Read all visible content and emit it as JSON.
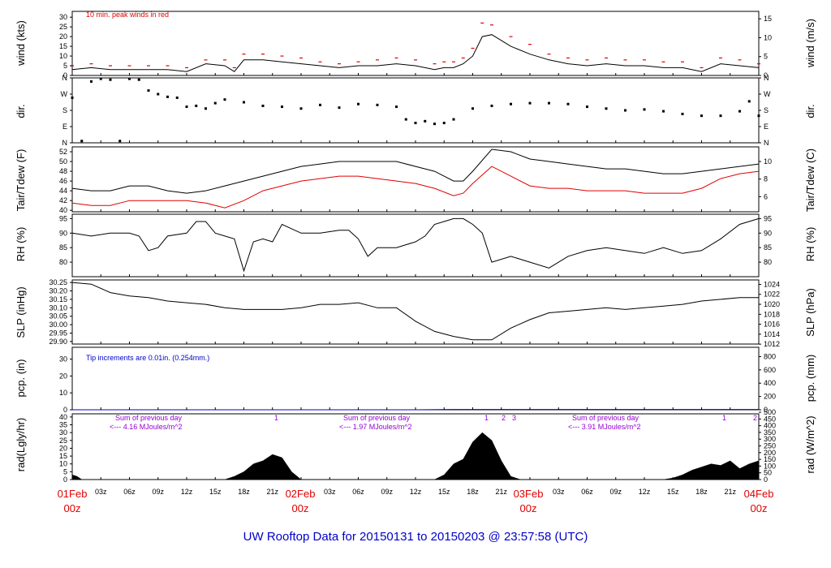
{
  "title": "UW Rooftop Data for 20150131  to  20150203 @ 23:57:58  (UTC)",
  "colors": {
    "series": "#000000",
    "red": "#e00000",
    "blue": "#0000cc",
    "purple": "#9400d3"
  },
  "time_axis": {
    "hour_labels": [
      "03z",
      "06z",
      "09z",
      "12z",
      "15z",
      "18z",
      "21z"
    ],
    "day_labels": [
      {
        "day": "01Feb",
        "hour": "00z"
      },
      {
        "day": "02Feb",
        "hour": "00z"
      },
      {
        "day": "03Feb",
        "hour": "00z"
      },
      {
        "day": "04Feb",
        "hour": "00z"
      }
    ]
  },
  "panels": {
    "wind": {
      "left_label": "wind (kts)",
      "right_label": "wind (m/s)",
      "note": "10 min. peak winds in red",
      "left_ticks": [
        "0",
        "5",
        "10",
        "15",
        "20",
        "25",
        "30"
      ],
      "right_ticks": [
        "0",
        "5",
        "10",
        "15"
      ]
    },
    "dir": {
      "left_label": "dir.",
      "right_label": "dir.",
      "left_ticks": [
        "N",
        "E",
        "S",
        "W",
        "N"
      ],
      "right_ticks": [
        "N",
        "E",
        "S",
        "W",
        "N"
      ]
    },
    "temp": {
      "left_label": "Tair/Tdew (F)",
      "right_label": "Tair/Tdew (C)",
      "left_ticks": [
        "40",
        "42",
        "44",
        "46",
        "48",
        "50",
        "52"
      ],
      "right_ticks": [
        "6",
        "8",
        "10"
      ]
    },
    "rh": {
      "left_label": "RH (%)",
      "right_label": "RH (%)",
      "left_ticks": [
        "80",
        "85",
        "90",
        "95"
      ],
      "right_ticks": [
        "80",
        "85",
        "90",
        "95"
      ]
    },
    "slp": {
      "left_label": "SLP (inHg)",
      "right_label": "SLP (hPa)",
      "left_ticks": [
        "29.90",
        "29.95",
        "30.00",
        "30.05",
        "30.10",
        "30.15",
        "30.20",
        "30.25"
      ],
      "right_ticks": [
        "1012",
        "1014",
        "1016",
        "1018",
        "1020",
        "1022",
        "1024"
      ]
    },
    "pcp": {
      "left_label": "pcp. (in)",
      "right_label": "pcp. (mm)",
      "note": "Tip increments are 0.01in. (0.254mm.)",
      "left_ticks": [
        "0",
        "10",
        "20",
        "30"
      ],
      "right_ticks": [
        "0",
        "200",
        "400",
        "600",
        "800"
      ]
    },
    "rad": {
      "left_label": "rad(Lgly/hr)",
      "right_label": "rad (W/m^2)",
      "left_ticks": [
        "0",
        "5",
        "10",
        "15",
        "20",
        "25",
        "30",
        "35",
        "40"
      ],
      "right_ticks": [
        "0",
        "50",
        "100",
        "150",
        "200",
        "250",
        "300",
        "350",
        "400",
        "450",
        "500"
      ],
      "sums": [
        {
          "line1": "Sum of previous day",
          "line2": "<--- 4.16 MJoules/m^2"
        },
        {
          "line1": "Sum of previous day",
          "line2": "<--- 1.97 MJoules/m^2"
        },
        {
          "line1": "Sum of previous day",
          "line2": "<--- 3.91 MJoules/m^2"
        }
      ],
      "markers": [
        "1",
        "1",
        "2",
        "3",
        "1",
        "2"
      ]
    }
  },
  "chart_data": {
    "type": "line",
    "x_unit": "hours since 01Feb 00z",
    "x_range": [
      0,
      72
    ],
    "series": [
      {
        "panel": "wind",
        "kind": "sustained_kts",
        "x": [
          0,
          2,
          4,
          6,
          8,
          10,
          12,
          14,
          16,
          17,
          18,
          20,
          22,
          24,
          26,
          28,
          30,
          32,
          34,
          36,
          38,
          39,
          40,
          41,
          42,
          43,
          44,
          46,
          48,
          50,
          52,
          54,
          56,
          58,
          60,
          62,
          64,
          66,
          68,
          70,
          72
        ],
        "y": [
          3,
          4,
          3,
          3,
          3,
          3,
          2,
          6,
          5,
          2,
          8,
          8,
          7,
          6,
          5,
          4,
          5,
          5,
          6,
          5,
          3,
          4,
          4,
          6,
          10,
          20,
          21,
          15,
          11,
          8,
          6,
          5,
          6,
          5,
          5,
          4,
          4,
          2,
          6,
          5,
          4
        ]
      },
      {
        "panel": "wind",
        "kind": "peak_kts",
        "x": [
          0,
          2,
          4,
          6,
          8,
          10,
          12,
          14,
          16,
          17,
          18,
          20,
          22,
          24,
          26,
          28,
          30,
          32,
          34,
          36,
          38,
          39,
          40,
          41,
          42,
          43,
          44,
          46,
          48,
          50,
          52,
          54,
          56,
          58,
          60,
          62,
          64,
          66,
          68,
          70,
          72
        ],
        "y": [
          5,
          6,
          5,
          5,
          5,
          5,
          4,
          8,
          8,
          4,
          11,
          11,
          10,
          9,
          7,
          6,
          7,
          8,
          9,
          8,
          6,
          7,
          7,
          9,
          14,
          27,
          26,
          20,
          16,
          11,
          9,
          8,
          9,
          8,
          8,
          7,
          7,
          4,
          9,
          8,
          6
        ]
      },
      {
        "panel": "dir",
        "kind": "direction_deg",
        "x": [
          0,
          1,
          2,
          3,
          4,
          5,
          6,
          7,
          8,
          9,
          10,
          11,
          12,
          13,
          14,
          15,
          16,
          18,
          20,
          22,
          24,
          26,
          28,
          30,
          32,
          34,
          35,
          36,
          37,
          38,
          39,
          40,
          42,
          44,
          46,
          48,
          50,
          52,
          54,
          56,
          58,
          60,
          62,
          64,
          66,
          68,
          70,
          71,
          72
        ],
        "y": [
          250,
          10,
          340,
          355,
          350,
          10,
          355,
          350,
          290,
          270,
          255,
          250,
          200,
          205,
          190,
          220,
          240,
          225,
          205,
          200,
          190,
          210,
          195,
          215,
          210,
          200,
          130,
          110,
          120,
          105,
          110,
          130,
          190,
          205,
          215,
          220,
          220,
          215,
          200,
          190,
          180,
          185,
          175,
          160,
          150,
          150,
          175,
          230,
          150
        ]
      },
      {
        "panel": "temp",
        "kind": "tair_F",
        "x": [
          0,
          2,
          4,
          6,
          8,
          10,
          12,
          14,
          16,
          18,
          20,
          22,
          24,
          26,
          28,
          30,
          32,
          34,
          36,
          38,
          40,
          41,
          42,
          44,
          46,
          48,
          50,
          52,
          54,
          56,
          58,
          60,
          62,
          64,
          66,
          68,
          70,
          72
        ],
        "y": [
          44.5,
          44,
          44,
          45,
          45,
          44,
          43.5,
          44,
          45,
          46,
          47,
          48,
          49,
          49.5,
          50,
          50,
          50,
          50,
          49,
          48,
          46,
          46,
          48,
          52.5,
          52,
          50.5,
          50,
          49.5,
          49,
          48.5,
          48.5,
          48,
          47.5,
          47.5,
          48,
          48.5,
          49,
          49.5
        ]
      },
      {
        "panel": "temp",
        "kind": "tdew_F",
        "x": [
          0,
          2,
          4,
          6,
          8,
          10,
          12,
          14,
          16,
          18,
          20,
          22,
          24,
          26,
          28,
          30,
          32,
          34,
          36,
          38,
          40,
          41,
          42,
          44,
          46,
          48,
          50,
          52,
          54,
          56,
          58,
          60,
          62,
          64,
          66,
          68,
          70,
          72
        ],
        "y": [
          41.5,
          41,
          41,
          42,
          42,
          42,
          42,
          41.5,
          40.5,
          42,
          44,
          45,
          46,
          46.5,
          47,
          47,
          46.5,
          46,
          45.5,
          44.5,
          43,
          43.5,
          45.5,
          49,
          47,
          45,
          44.5,
          44.5,
          44,
          44,
          44,
          43.5,
          43.5,
          43.5,
          44.5,
          46.5,
          47.5,
          48
        ]
      },
      {
        "panel": "rh",
        "kind": "rh_pct",
        "x": [
          0,
          2,
          4,
          6,
          7,
          8,
          9,
          10,
          12,
          13,
          14,
          15,
          16,
          17,
          18,
          19,
          20,
          21,
          22,
          24,
          26,
          28,
          29,
          30,
          31,
          32,
          34,
          36,
          37,
          38,
          39,
          40,
          41,
          42,
          43,
          44,
          46,
          48,
          50,
          52,
          54,
          56,
          58,
          60,
          62,
          64,
          66,
          68,
          70,
          72
        ],
        "y": [
          90,
          89,
          90,
          90,
          89,
          84,
          85,
          89,
          90,
          94,
          94,
          90,
          89,
          88,
          77,
          87,
          88,
          87,
          93,
          90,
          90,
          91,
          91,
          88,
          82,
          85,
          85,
          87,
          89,
          93,
          94,
          95,
          95,
          93,
          90,
          80,
          82,
          80,
          78,
          82,
          84,
          85,
          84,
          83,
          85,
          83,
          84,
          88,
          93,
          95
        ]
      },
      {
        "panel": "slp",
        "kind": "slp_inHg",
        "x": [
          0,
          2,
          4,
          6,
          8,
          10,
          12,
          14,
          16,
          18,
          20,
          22,
          24,
          26,
          28,
          30,
          32,
          34,
          36,
          38,
          40,
          42,
          44,
          46,
          48,
          50,
          52,
          54,
          56,
          58,
          60,
          62,
          64,
          66,
          68,
          70,
          72
        ],
        "y": [
          30.25,
          30.24,
          30.19,
          30.17,
          30.16,
          30.14,
          30.13,
          30.12,
          30.1,
          30.09,
          30.09,
          30.09,
          30.1,
          30.12,
          30.12,
          30.13,
          30.1,
          30.1,
          30.02,
          29.96,
          29.93,
          29.91,
          29.91,
          29.98,
          30.03,
          30.07,
          30.08,
          30.09,
          30.1,
          30.09,
          30.1,
          30.11,
          30.12,
          30.14,
          30.15,
          30.16,
          30.16
        ]
      },
      {
        "panel": "pcp",
        "kind": "precip_in",
        "x": [
          0,
          36,
          40,
          72
        ],
        "y": [
          0,
          0,
          0.2,
          0.2
        ]
      },
      {
        "panel": "rad",
        "kind": "solar_Lgly_hr",
        "x": [
          0,
          0.5,
          1,
          14,
          15,
          16,
          17,
          18,
          19,
          20,
          21,
          22,
          23,
          24,
          38,
          39,
          40,
          41,
          42,
          43,
          44,
          45,
          46,
          47,
          62,
          63,
          64,
          65,
          66,
          67,
          68,
          69,
          70,
          71,
          72
        ],
        "y": [
          3,
          2,
          0,
          0,
          0,
          0,
          2,
          5,
          10,
          12,
          16,
          14,
          5,
          0,
          0,
          3,
          10,
          13,
          24,
          30,
          25,
          12,
          2,
          0,
          0,
          1,
          3,
          6,
          8,
          10,
          9,
          12,
          7,
          10,
          12
        ]
      }
    ],
    "axes": {
      "wind_kts": [
        0,
        33
      ],
      "dir": [
        "N",
        "E",
        "S",
        "W",
        "N"
      ],
      "temp_F": [
        39.7,
        53
      ],
      "rh_pct": [
        75,
        96.5
      ],
      "slp_inHg": [
        29.885,
        30.265
      ],
      "pcp_in": [
        0,
        37
      ],
      "rad_Lgly_hr": [
        0,
        42
      ]
    }
  }
}
